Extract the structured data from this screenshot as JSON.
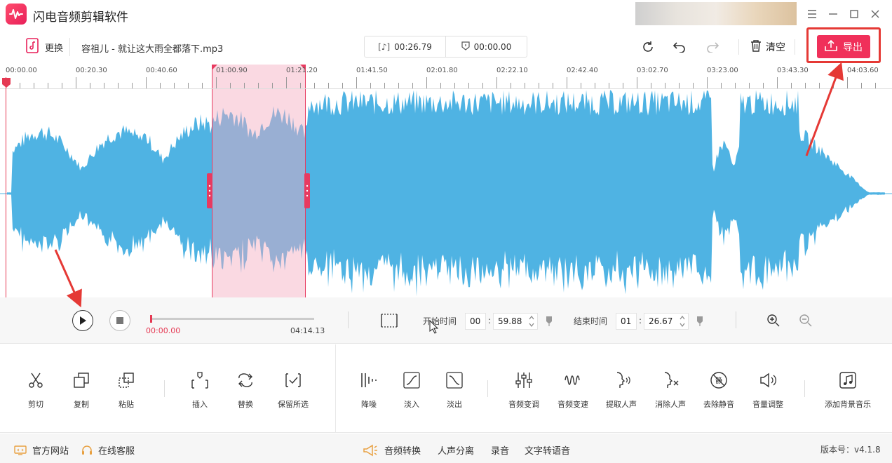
{
  "app": {
    "title": "闪电音频剪辑软件"
  },
  "toolbar": {
    "replace_label": "更换",
    "file_name": "容祖儿 - 就让这大雨全都落下.mp3",
    "duration": "00:26.79",
    "position": "00:00.00",
    "clear_label": "清空",
    "export_label": "导出"
  },
  "timeline": {
    "ticks": [
      "00:00.00",
      "00:20.30",
      "00:40.60",
      "01:00.90",
      "01:21.20",
      "01:41.50",
      "02:01.80",
      "02:22.10",
      "02:42.40",
      "03:02.70",
      "03:23.00",
      "03:43.30",
      "04:03.60"
    ]
  },
  "playback": {
    "current": "00:00.00",
    "total": "04:14.13",
    "start_label": "开始时间",
    "start_min": "00",
    "start_sec": "59.88",
    "end_label": "结束时间",
    "end_min": "01",
    "end_sec": "26.67"
  },
  "tools": [
    {
      "label": "剪切",
      "icon": "scissors-icon"
    },
    {
      "label": "复制",
      "icon": "copy-icon"
    },
    {
      "label": "粘贴",
      "icon": "paste-icon"
    },
    {
      "label": "插入",
      "icon": "insert-icon"
    },
    {
      "label": "替换",
      "icon": "replace-icon"
    },
    {
      "label": "保留所选",
      "icon": "keep-selection-icon"
    },
    {
      "label": "降噪",
      "icon": "denoise-icon"
    },
    {
      "label": "淡入",
      "icon": "fade-in-icon"
    },
    {
      "label": "淡出",
      "icon": "fade-out-icon"
    },
    {
      "label": "音频变调",
      "icon": "pitch-icon"
    },
    {
      "label": "音频变速",
      "icon": "speed-icon"
    },
    {
      "label": "提取人声",
      "icon": "extract-voice-icon"
    },
    {
      "label": "消除人声",
      "icon": "remove-voice-icon"
    },
    {
      "label": "去除静音",
      "icon": "remove-silence-icon"
    },
    {
      "label": "音量调整",
      "icon": "volume-icon"
    },
    {
      "label": "添加背景音乐",
      "icon": "bg-music-icon"
    }
  ],
  "footer": {
    "website": "官方网站",
    "support": "在线客服",
    "audio_convert": "音频转换",
    "vocal_split": "人声分离",
    "record": "录音",
    "tts": "文字转语音",
    "version": "版本号：v4.1.8"
  },
  "colors": {
    "accent": "#f0305a",
    "wave": "#4fb3e3",
    "selection": "#f4aabe"
  }
}
